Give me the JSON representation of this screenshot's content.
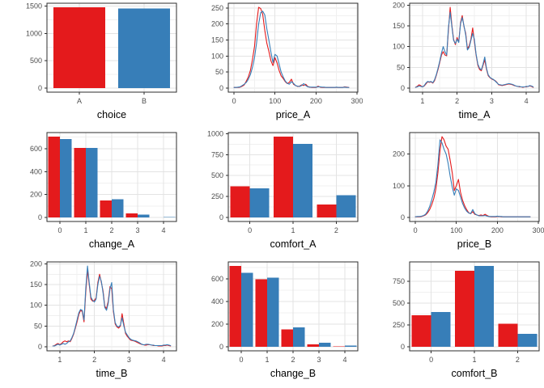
{
  "palette": {
    "red": "#E41A1C",
    "blue": "#377EB8",
    "grid_major": "#E3E3E3",
    "grid_minor": "#F0F0F0",
    "panel_border": "#2E2E2E",
    "tick_label": "#4D4D4D",
    "title": "#000000",
    "panel_bg": "#FFFFFF"
  },
  "chart_data": [
    {
      "name": "choice",
      "type": "bar_single",
      "title": "choice",
      "categories": [
        "A",
        "B"
      ],
      "values": [
        1480,
        1455
      ],
      "colors": [
        "red",
        "blue"
      ],
      "yticks": [
        0,
        500,
        1000,
        1500
      ],
      "grid": true,
      "legend": "none"
    },
    {
      "name": "price_A",
      "type": "line",
      "title": "price_A",
      "x0": 0,
      "dx": 5,
      "xlim": [
        -14,
        302
      ],
      "xticks": [
        0,
        100,
        200,
        300
      ],
      "xminors": [
        50,
        150,
        250
      ],
      "yticks": [
        0,
        50,
        100,
        150,
        200,
        250
      ],
      "grid": true,
      "legend": "none",
      "series": [
        {
          "color": "red",
          "y": [
            2,
            2,
            2,
            3,
            6,
            10,
            22,
            35,
            55,
            90,
            130,
            200,
            252,
            248,
            230,
            180,
            140,
            115,
            85,
            70,
            95,
            78,
            55,
            38,
            30,
            20,
            14,
            18,
            28,
            12,
            8,
            5,
            6,
            10,
            8,
            12,
            5,
            3,
            2,
            2,
            2,
            6,
            3,
            2,
            2,
            2,
            2,
            2,
            2,
            2,
            2,
            2,
            2,
            2,
            4,
            3,
            2
          ]
        },
        {
          "color": "blue",
          "y": [
            2,
            2,
            3,
            4,
            8,
            12,
            18,
            28,
            42,
            65,
            95,
            140,
            200,
            235,
            240,
            228,
            185,
            150,
            112,
            80,
            105,
            100,
            75,
            50,
            35,
            22,
            15,
            12,
            20,
            15,
            8,
            6,
            5,
            8,
            14,
            8,
            4,
            3,
            3,
            3,
            3,
            4,
            4,
            3,
            3,
            2,
            2,
            2,
            2,
            2,
            3,
            2,
            2,
            2,
            3,
            2,
            2
          ]
        }
      ]
    },
    {
      "name": "time_A",
      "type": "line",
      "title": "time_A",
      "x0": 0.8,
      "dx": 0.05,
      "xlim": [
        0.63,
        4.37
      ],
      "xticks": [
        1,
        2,
        3,
        4
      ],
      "xminors": [
        1.5,
        2.5,
        3.5
      ],
      "yticks": [
        0,
        50,
        100,
        150,
        200
      ],
      "grid": true,
      "legend": "none",
      "series": [
        {
          "color": "red",
          "y": [
            2,
            4,
            8,
            6,
            3,
            5,
            10,
            15,
            14,
            15,
            12,
            18,
            30,
            45,
            62,
            80,
            88,
            80,
            78,
            138,
            195,
            152,
            118,
            105,
            122,
            112,
            158,
            175,
            148,
            132,
            95,
            102,
            118,
            145,
            112,
            80,
            55,
            45,
            42,
            55,
            68,
            45,
            30,
            25,
            22,
            20,
            18,
            14,
            8,
            7,
            6,
            7,
            8,
            9,
            10,
            9,
            8,
            6,
            5,
            4,
            3,
            3,
            2,
            3,
            3,
            4,
            5,
            4,
            2
          ]
        },
        {
          "color": "blue",
          "y": [
            2,
            3,
            5,
            4,
            3,
            6,
            12,
            16,
            15,
            16,
            13,
            20,
            32,
            48,
            65,
            85,
            100,
            88,
            80,
            145,
            183,
            148,
            115,
            108,
            118,
            110,
            155,
            170,
            150,
            128,
            92,
            98,
            115,
            132,
            118,
            82,
            58,
            48,
            44,
            58,
            75,
            48,
            32,
            26,
            23,
            21,
            17,
            13,
            9,
            8,
            7,
            8,
            9,
            10,
            11,
            10,
            9,
            7,
            5,
            4,
            4,
            3,
            3,
            3,
            4,
            4,
            6,
            5,
            3
          ]
        }
      ]
    },
    {
      "name": "change_A",
      "type": "bar_grouped",
      "title": "change_A",
      "categories": [
        "0",
        "1",
        "2",
        "3",
        "4"
      ],
      "series": [
        {
          "color": "red",
          "values": [
            705,
            605,
            148,
            35,
            1
          ]
        },
        {
          "color": "blue",
          "values": [
            685,
            607,
            157,
            25,
            2
          ]
        }
      ],
      "yticks": [
        0,
        200,
        400,
        600
      ],
      "grid": true,
      "legend": "none"
    },
    {
      "name": "comfort_A",
      "type": "bar_grouped",
      "title": "comfort_A",
      "categories": [
        "0",
        "1",
        "2"
      ],
      "series": [
        {
          "color": "red",
          "values": [
            370,
            965,
            155
          ]
        },
        {
          "color": "blue",
          "values": [
            345,
            880,
            265
          ]
        }
      ],
      "yticks": [
        0,
        250,
        500,
        750,
        1000
      ],
      "grid": true,
      "legend": "none"
    },
    {
      "name": "price_B",
      "type": "line",
      "title": "price_B",
      "x0": 0,
      "dx": 5,
      "xlim": [
        -14,
        302
      ],
      "xticks": [
        0,
        100,
        200,
        300
      ],
      "xminors": [
        50,
        150,
        250
      ],
      "yticks": [
        0,
        100,
        200
      ],
      "grid": true,
      "legend": "none",
      "series": [
        {
          "color": "red",
          "y": [
            2,
            2,
            2,
            3,
            5,
            8,
            15,
            25,
            40,
            60,
            90,
            140,
            210,
            255,
            245,
            225,
            215,
            180,
            140,
            85,
            100,
            120,
            80,
            55,
            38,
            25,
            15,
            12,
            18,
            10,
            8,
            6,
            8,
            6,
            10,
            6,
            3,
            2,
            2,
            2,
            3,
            3,
            2,
            2,
            2,
            2,
            2,
            2,
            2,
            2,
            2,
            2,
            2,
            2,
            2,
            2,
            2
          ]
        },
        {
          "color": "blue",
          "y": [
            2,
            3,
            3,
            4,
            6,
            10,
            20,
            35,
            55,
            80,
            110,
            165,
            245,
            235,
            215,
            200,
            170,
            130,
            95,
            70,
            90,
            85,
            65,
            45,
            30,
            20,
            14,
            12,
            25,
            12,
            8,
            5,
            5,
            5,
            6,
            4,
            3,
            3,
            3,
            3,
            4,
            3,
            3,
            2,
            2,
            2,
            2,
            2,
            2,
            2,
            2,
            2,
            2,
            2,
            2,
            2,
            2
          ]
        }
      ]
    },
    {
      "name": "time_B",
      "type": "line",
      "title": "time_B",
      "x0": 0.8,
      "dx": 0.05,
      "xlim": [
        0.63,
        4.37
      ],
      "xticks": [
        1,
        2,
        3,
        4
      ],
      "xminors": [
        1.5,
        2.5,
        3.5
      ],
      "yticks": [
        0,
        50,
        100,
        150,
        200
      ],
      "grid": true,
      "legend": "none",
      "series": [
        {
          "color": "red",
          "y": [
            2,
            3,
            6,
            8,
            5,
            8,
            12,
            14,
            12,
            14,
            12,
            20,
            30,
            45,
            60,
            78,
            88,
            85,
            60,
            130,
            185,
            150,
            115,
            110,
            112,
            118,
            155,
            175,
            155,
            135,
            98,
            92,
            110,
            145,
            140,
            85,
            55,
            48,
            45,
            50,
            80,
            55,
            32,
            25,
            20,
            16,
            15,
            14,
            12,
            10,
            8,
            6,
            5,
            4,
            4,
            5,
            5,
            4,
            3,
            3,
            3,
            2,
            2,
            2,
            3,
            3,
            4,
            3,
            2
          ]
        },
        {
          "color": "blue",
          "y": [
            2,
            2,
            4,
            6,
            4,
            6,
            8,
            6,
            8,
            12,
            14,
            22,
            32,
            48,
            65,
            82,
            90,
            88,
            65,
            140,
            195,
            155,
            120,
            112,
            108,
            115,
            150,
            170,
            158,
            130,
            95,
            88,
            105,
            140,
            155,
            90,
            58,
            50,
            48,
            52,
            70,
            50,
            35,
            28,
            22,
            18,
            16,
            15,
            14,
            12,
            10,
            7,
            5,
            5,
            6,
            6,
            5,
            4,
            4,
            3,
            3,
            3,
            3,
            3,
            4,
            4,
            5,
            4,
            3
          ]
        }
      ]
    },
    {
      "name": "change_B",
      "type": "bar_grouped",
      "title": "change_B",
      "categories": [
        "0",
        "1",
        "2",
        "3",
        "4"
      ],
      "series": [
        {
          "color": "red",
          "values": [
            715,
            598,
            155,
            20,
            2
          ]
        },
        {
          "color": "blue",
          "values": [
            655,
            610,
            170,
            35,
            12
          ]
        }
      ],
      "yticks": [
        0,
        200,
        400,
        600
      ],
      "grid": true,
      "legend": "none"
    },
    {
      "name": "comfort_B",
      "type": "bar_grouped",
      "title": "comfort_B",
      "categories": [
        "0",
        "1",
        "2"
      ],
      "series": [
        {
          "color": "red",
          "values": [
            360,
            870,
            265
          ]
        },
        {
          "color": "blue",
          "values": [
            400,
            925,
            150
          ]
        }
      ],
      "yticks": [
        0,
        250,
        500,
        750
      ],
      "grid": true,
      "legend": "none"
    }
  ]
}
